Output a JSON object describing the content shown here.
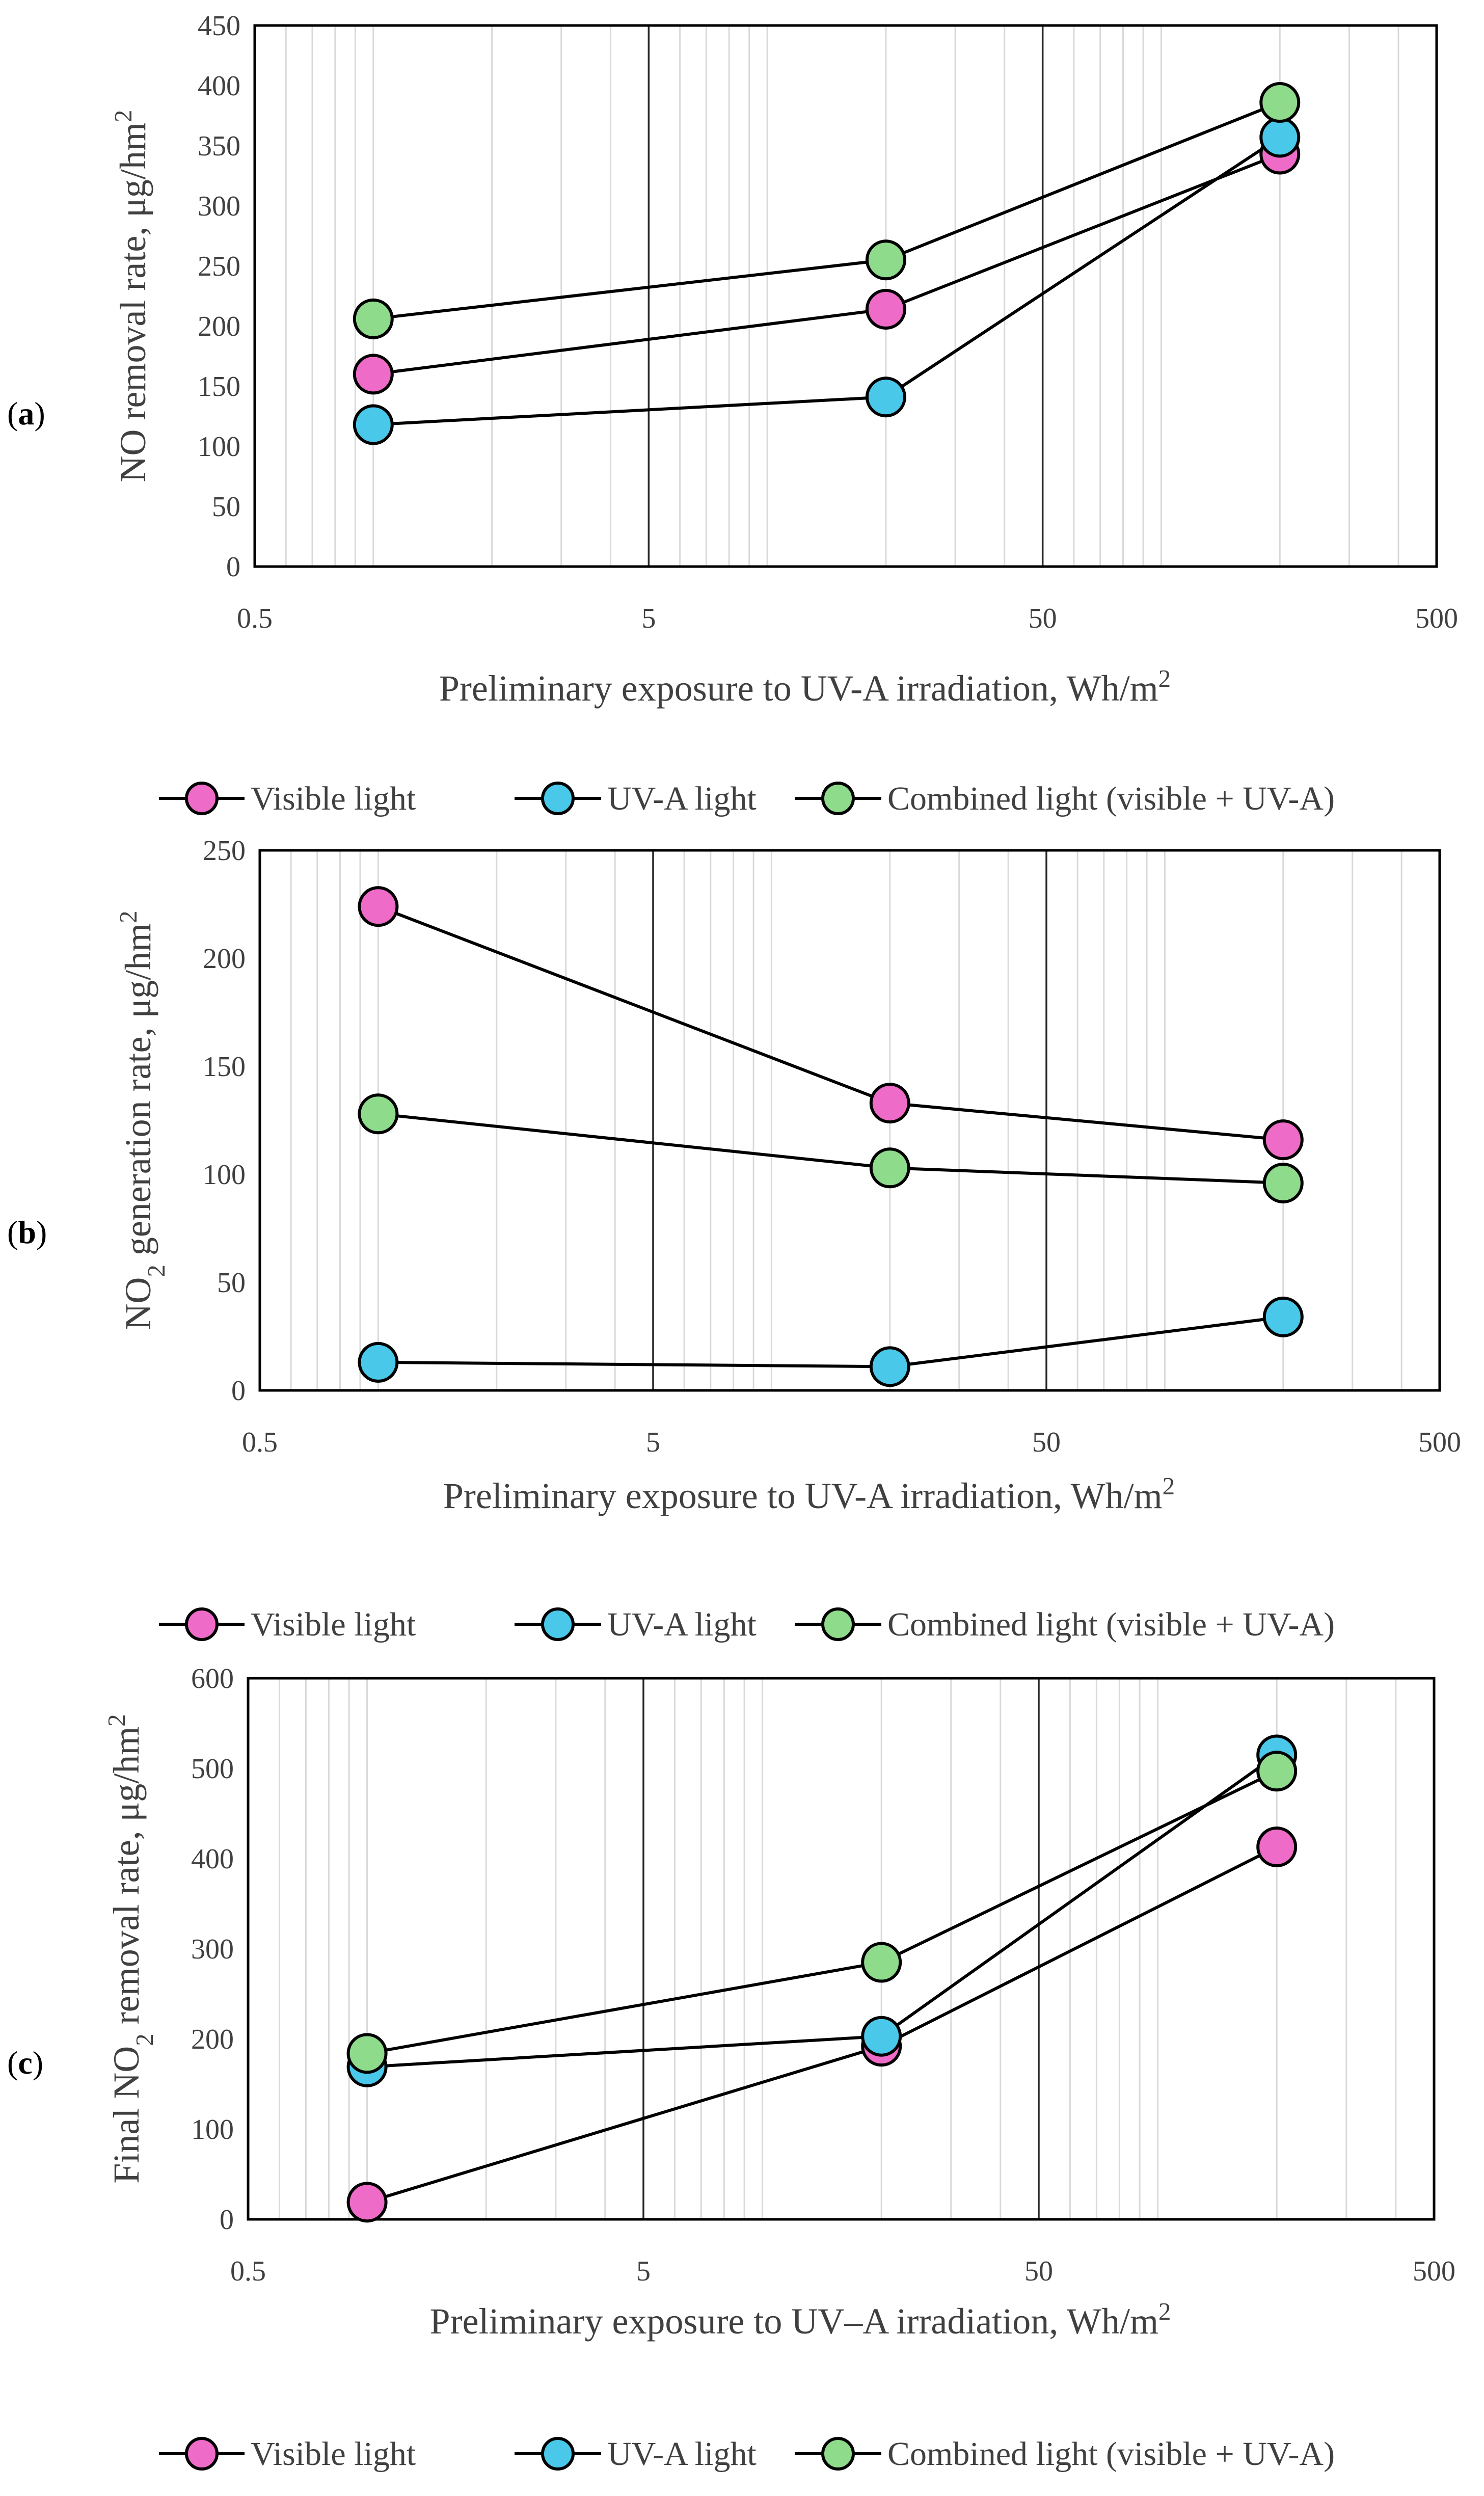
{
  "chart_data": [
    {
      "panel_label": "(a)",
      "type": "line",
      "xscale": "log",
      "xlim": [
        0.5,
        500
      ],
      "xticks": [
        "0.5",
        "5",
        "50",
        "500"
      ],
      "ylim": [
        0,
        450
      ],
      "yticks": [
        "0",
        "50",
        "100",
        "150",
        "200",
        "250",
        "300",
        "350",
        "400",
        "450"
      ],
      "xlabel": "Preliminary exposure to UV-A irradiation, Wh/m²",
      "ylabel": "NO removal rate, μg/hm²",
      "x": [
        1.0,
        20,
        200
      ],
      "series": [
        {
          "name": "Visible light",
          "color": "#ee6cc8",
          "values": [
            160,
            214,
            343
          ]
        },
        {
          "name": "UV-A light",
          "color": "#49c8ea",
          "values": [
            118,
            141,
            357
          ]
        },
        {
          "name": "Combined light (visible + UV-A)",
          "color": "#8fdb8c",
          "values": [
            206,
            255,
            386
          ]
        }
      ],
      "legend": "bottom"
    },
    {
      "panel_label": "(b)",
      "type": "line",
      "xscale": "log",
      "xlim": [
        0.5,
        500
      ],
      "xticks": [
        "0.5",
        "5",
        "50",
        "500"
      ],
      "ylim": [
        0,
        250
      ],
      "yticks": [
        "0",
        "50",
        "100",
        "150",
        "200",
        "250"
      ],
      "xlabel": "Preliminary exposure to UV-A irradiation, Wh/m²",
      "ylabel": "NO₂ generation rate, μg/hm²",
      "x": [
        1.0,
        20,
        200
      ],
      "series": [
        {
          "name": "Visible light",
          "color": "#ee6cc8",
          "values": [
            224,
            133,
            116
          ]
        },
        {
          "name": "UV-A light",
          "color": "#49c8ea",
          "values": [
            13,
            11,
            34
          ]
        },
        {
          "name": "Combined light (visible + UV-A)",
          "color": "#8fdb8c",
          "values": [
            128,
            103,
            96
          ]
        }
      ],
      "legend": "bottom"
    },
    {
      "panel_label": "(c)",
      "type": "line",
      "xscale": "log",
      "xlim": [
        0.5,
        500
      ],
      "xticks": [
        "0.5",
        "5",
        "50",
        "500"
      ],
      "ylim": [
        0,
        600
      ],
      "yticks": [
        "0",
        "100",
        "200",
        "300",
        "400",
        "500",
        "600"
      ],
      "xlabel": "Preliminary exposure to UV–A irradiation, Wh/m²",
      "ylabel": "Final NO₂ removal rate, μg/hm²",
      "x": [
        1.0,
        20,
        200
      ],
      "series": [
        {
          "name": "Visible light",
          "color": "#ee6cc8",
          "values": [
            19,
            192,
            413
          ]
        },
        {
          "name": "UV-A light",
          "color": "#49c8ea",
          "values": [
            169,
            203,
            515
          ]
        },
        {
          "name": "Combined light (visible + UV-A)",
          "color": "#8fdb8c",
          "values": [
            184,
            285,
            497
          ]
        }
      ],
      "legend": "bottom"
    }
  ]
}
